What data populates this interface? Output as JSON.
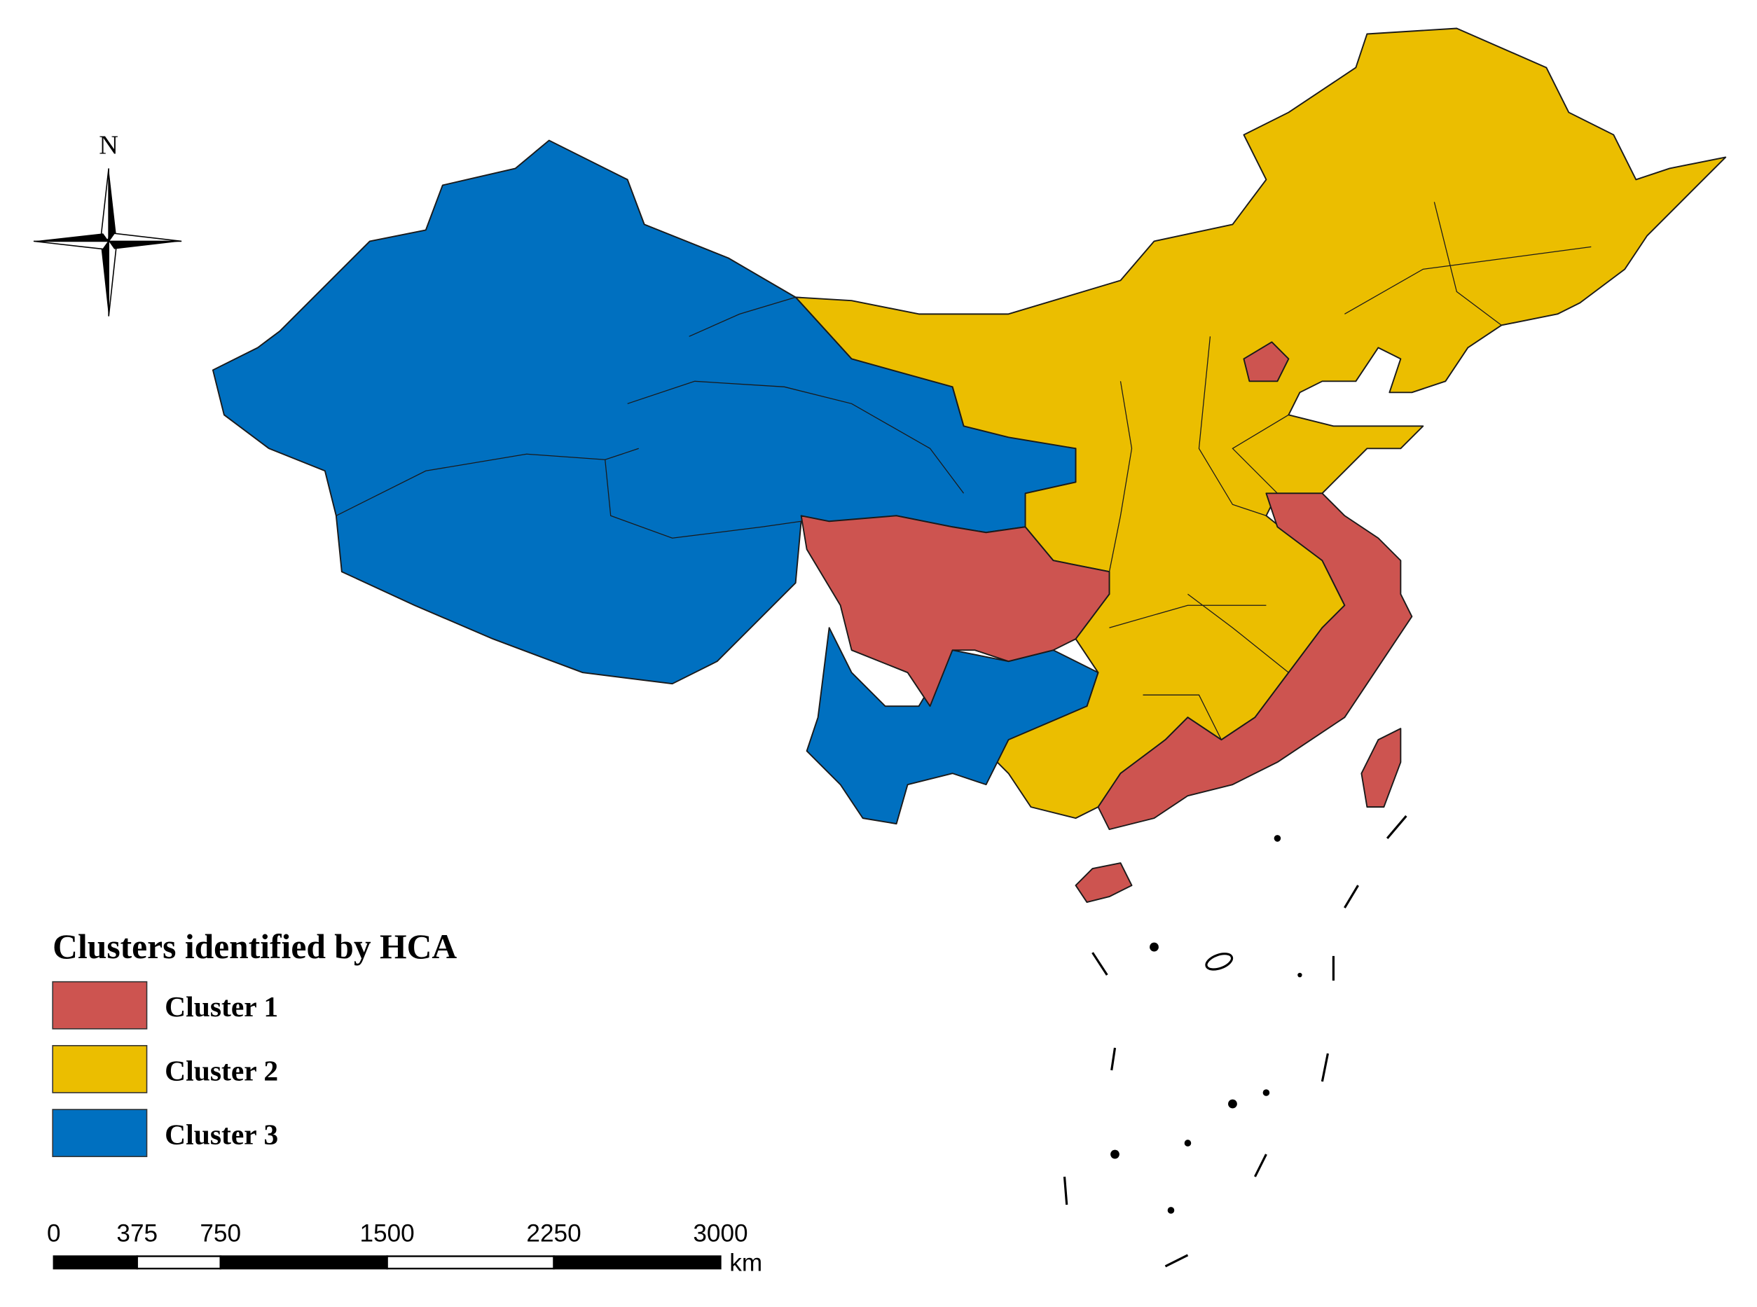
{
  "north_label": "N",
  "legend": {
    "title": "Clusters identified by HCA",
    "items": [
      {
        "label": "Cluster 1",
        "color": "#cd5450"
      },
      {
        "label": "Cluster 2",
        "color": "#ebbe00"
      },
      {
        "label": "Cluster 3",
        "color": "#0070c0"
      }
    ]
  },
  "scale_bar": {
    "ticks": [
      0,
      375,
      750,
      1500,
      2250,
      3000
    ],
    "unit": "km"
  }
}
